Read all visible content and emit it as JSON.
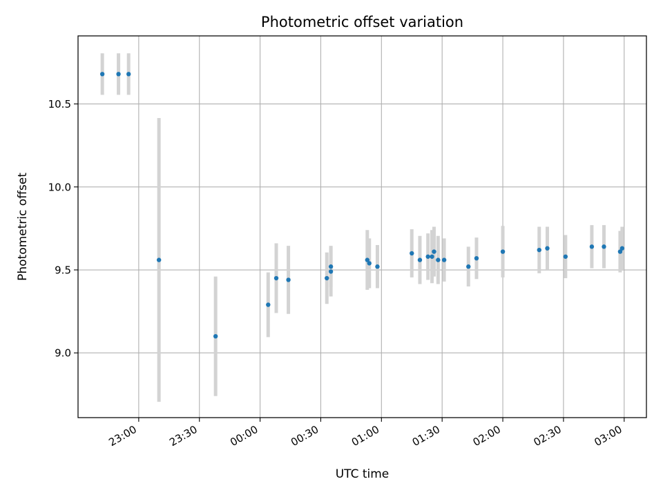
{
  "chart_data": {
    "type": "scatter",
    "title": "Photometric offset variation",
    "xlabel": "UTC time",
    "ylabel": "Photometric offset",
    "x_type": "time",
    "x_ticks": [
      "23:00",
      "23:30",
      "00:00",
      "00:30",
      "01:00",
      "01:30",
      "02:00",
      "02:30",
      "03:00"
    ],
    "x_tick_values": [
      "2023-01-01T23:00",
      "2023-01-01T23:30",
      "2023-01-02T00:00",
      "2023-01-02T00:30",
      "2023-01-02T01:00",
      "2023-01-02T01:30",
      "2023-01-02T02:00",
      "2023-01-02T02:30",
      "2023-01-02T03:00"
    ],
    "y_ticks": [
      9.0,
      9.5,
      10.0,
      10.5
    ],
    "xlim": [
      "2023-01-01T22:30",
      "2023-01-02T03:11"
    ],
    "ylim": [
      8.61,
      10.91
    ],
    "grid": true,
    "colors": {
      "marker": "#1f77b4",
      "errorbar": "#d3d3d3",
      "grid": "#b0b0b0"
    },
    "series": [
      {
        "x": [
          "2023-01-01T22:42",
          "2023-01-01T22:50",
          "2023-01-01T22:55",
          "2023-01-01T23:10",
          "2023-01-01T23:38",
          "2023-01-02T00:04",
          "2023-01-02T00:08",
          "2023-01-02T00:14",
          "2023-01-02T00:33",
          "2023-01-02T00:35",
          "2023-01-02T00:35",
          "2023-01-02T00:53",
          "2023-01-02T00:54",
          "2023-01-02T00:58",
          "2023-01-02T01:15",
          "2023-01-02T01:19",
          "2023-01-02T01:23",
          "2023-01-02T01:25",
          "2023-01-02T01:26",
          "2023-01-02T01:28",
          "2023-01-02T01:31",
          "2023-01-02T01:43",
          "2023-01-02T01:47",
          "2023-01-02T02:00",
          "2023-01-02T02:18",
          "2023-01-02T02:22",
          "2023-01-02T02:31",
          "2023-01-02T02:44",
          "2023-01-02T02:50",
          "2023-01-02T02:58",
          "2023-01-02T02:59"
        ],
        "y": [
          10.68,
          10.68,
          10.68,
          9.56,
          9.1,
          9.29,
          9.45,
          9.44,
          9.45,
          9.52,
          9.49,
          9.56,
          9.54,
          9.52,
          9.6,
          9.56,
          9.58,
          9.58,
          9.61,
          9.56,
          9.56,
          9.52,
          9.57,
          9.61,
          9.62,
          9.63,
          9.58,
          9.64,
          9.64,
          9.61,
          9.63
        ],
        "yerr": [
          0.125,
          0.125,
          0.125,
          0.855,
          0.36,
          0.195,
          0.21,
          0.205,
          0.155,
          0.125,
          0.15,
          0.18,
          0.15,
          0.13,
          0.145,
          0.145,
          0.14,
          0.16,
          0.15,
          0.145,
          0.13,
          0.12,
          0.125,
          0.155,
          0.14,
          0.13,
          0.13,
          0.13,
          0.13,
          0.125,
          0.13
        ]
      }
    ]
  }
}
